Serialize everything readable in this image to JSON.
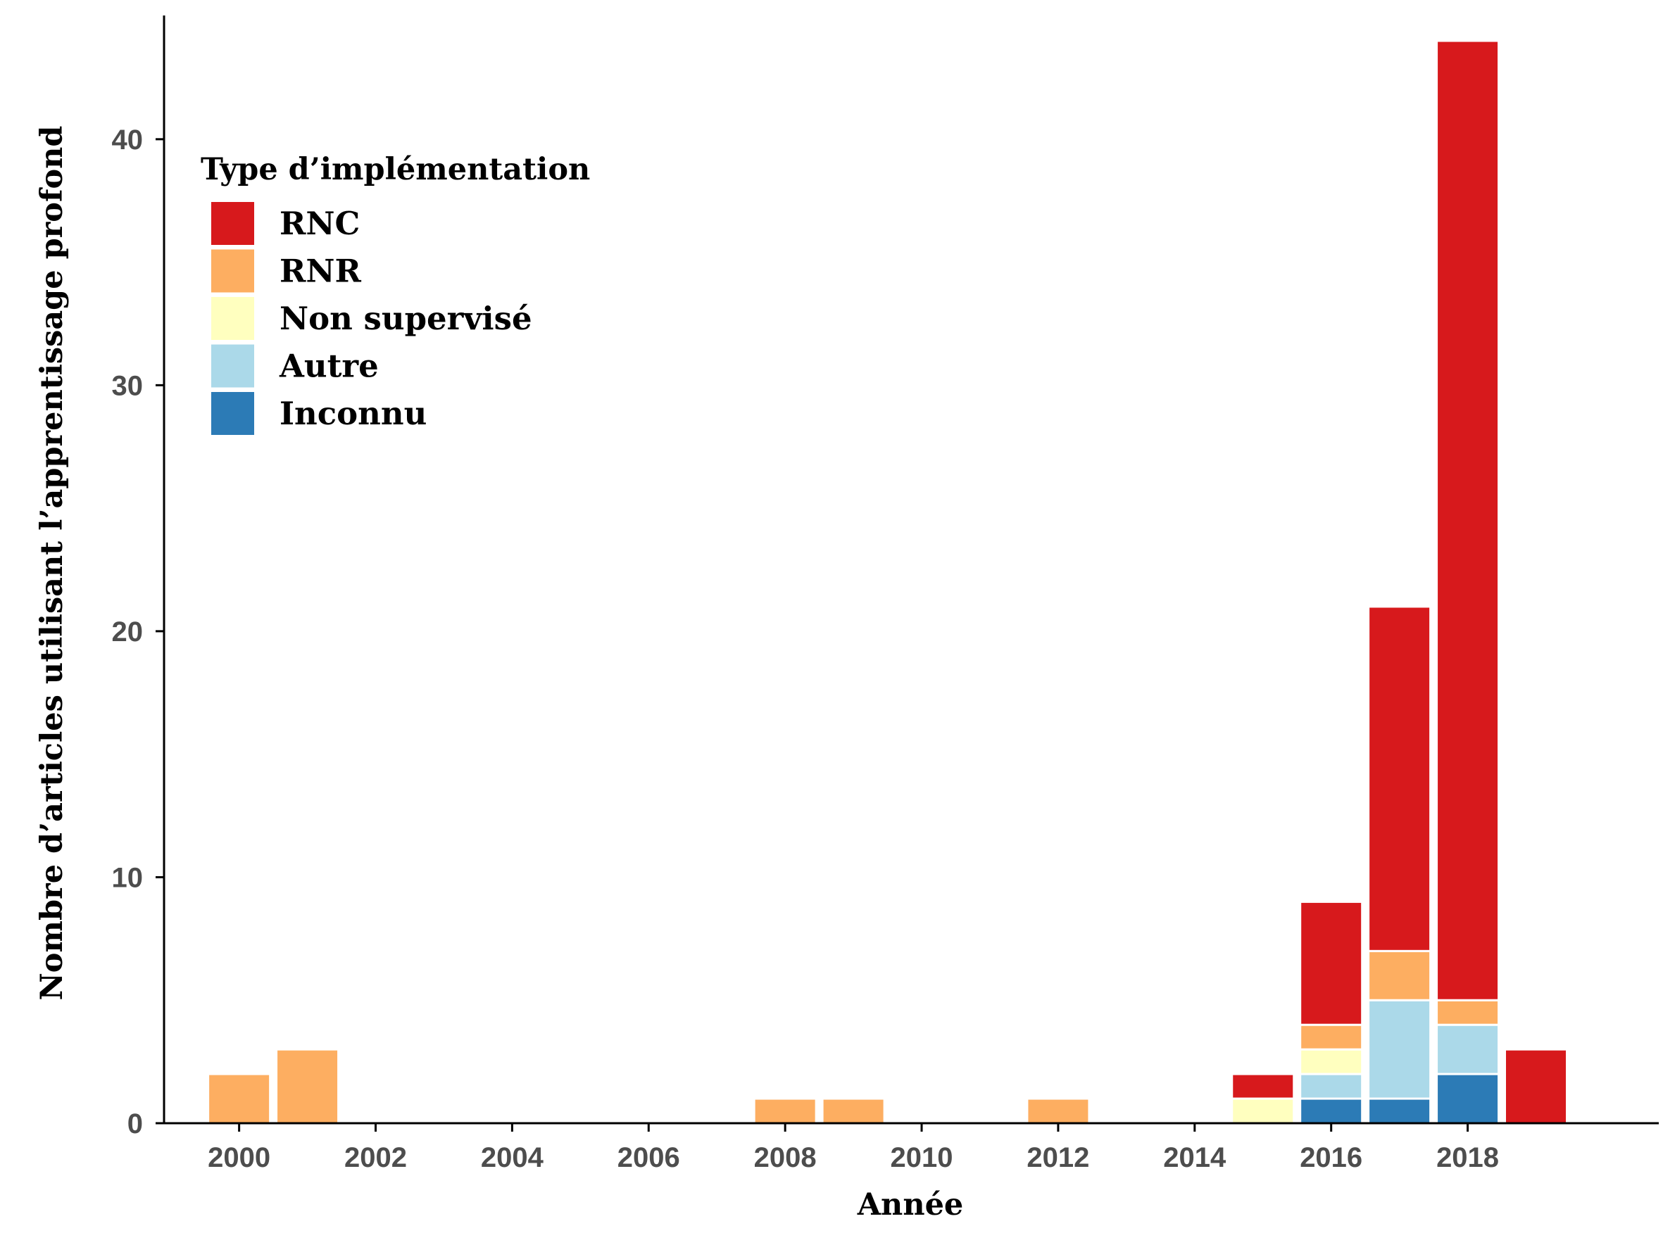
{
  "chart_data": {
    "type": "bar",
    "stacked": true,
    "xlabel": "Année",
    "ylabel": "Nombre d’articles utilisant l’apprentissage profond",
    "x": [
      2000,
      2001,
      2008,
      2009,
      2012,
      2015,
      2016,
      2017,
      2018,
      2019
    ],
    "x_ticks": [
      2000,
      2002,
      2004,
      2006,
      2008,
      2010,
      2012,
      2014,
      2016,
      2018
    ],
    "xlim": [
      1998.9,
      2020.8
    ],
    "y_ticks": [
      0,
      10,
      20,
      30,
      40
    ],
    "ylim": [
      0,
      44
    ],
    "grid": false,
    "legend": {
      "title": "Type d’implémentation",
      "position": "top-left"
    },
    "series": [
      {
        "name": "Inconnu",
        "color": "#2c7bb6",
        "values": [
          0,
          0,
          0,
          0,
          0,
          0,
          1,
          1,
          2,
          0
        ]
      },
      {
        "name": "Autre",
        "color": "#abd9e9",
        "values": [
          0,
          0,
          0,
          0,
          0,
          0,
          1,
          4,
          2,
          0
        ]
      },
      {
        "name": "Non supervisé",
        "color": "#ffffbf",
        "values": [
          0,
          0,
          0,
          0,
          0,
          1,
          1,
          0,
          0,
          0
        ]
      },
      {
        "name": "RNR",
        "color": "#fdae61",
        "values": [
          2,
          3,
          1,
          1,
          1,
          0,
          1,
          2,
          1,
          0
        ]
      },
      {
        "name": "RNC",
        "color": "#d7191c",
        "values": [
          0,
          0,
          0,
          0,
          0,
          1,
          5,
          14,
          39,
          3
        ]
      }
    ],
    "legend_order": [
      "RNC",
      "RNR",
      "Non supervisé",
      "Autre",
      "Inconnu"
    ]
  }
}
